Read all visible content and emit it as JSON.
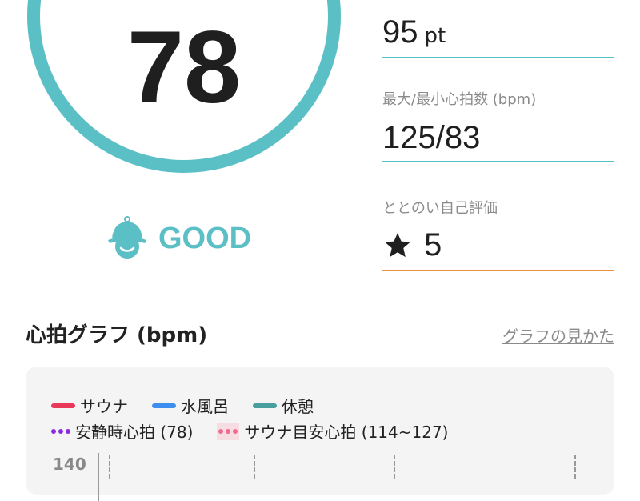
{
  "score": {
    "value": "78",
    "status": "GOOD",
    "progress_percent": 97,
    "ring_color": "#5bbfc6",
    "track_color": "#e6e6e6",
    "icon": "sauna-hat-face-icon"
  },
  "metrics": [
    {
      "label": "",
      "value": "95",
      "unit": "pt",
      "line_color": "#5bbfc6"
    },
    {
      "label": "最大/最小心拍数 (bpm)",
      "value": "125/83",
      "line_color": "#5bbfc6"
    },
    {
      "label": "ととのい自己評価",
      "value": "5",
      "icon": "star-icon",
      "line_color": "#e8943f"
    }
  ],
  "graph": {
    "title": "心拍グラフ (bpm)",
    "help_link": "グラフの見かた",
    "legend": [
      {
        "label": "サウナ",
        "color": "#e8395a",
        "style": "solid"
      },
      {
        "label": "水風呂",
        "color": "#3e8ef0",
        "style": "solid"
      },
      {
        "label": "休憩",
        "color": "#4a9e9e",
        "style": "solid"
      },
      {
        "label": "安静時心拍 (78)",
        "color": "#8a2be2",
        "style": "dotted"
      },
      {
        "label": "サウナ目安心拍 (114~127)",
        "color": "#f06b8f",
        "style": "dotted"
      }
    ],
    "y_tick_top": "140"
  }
}
